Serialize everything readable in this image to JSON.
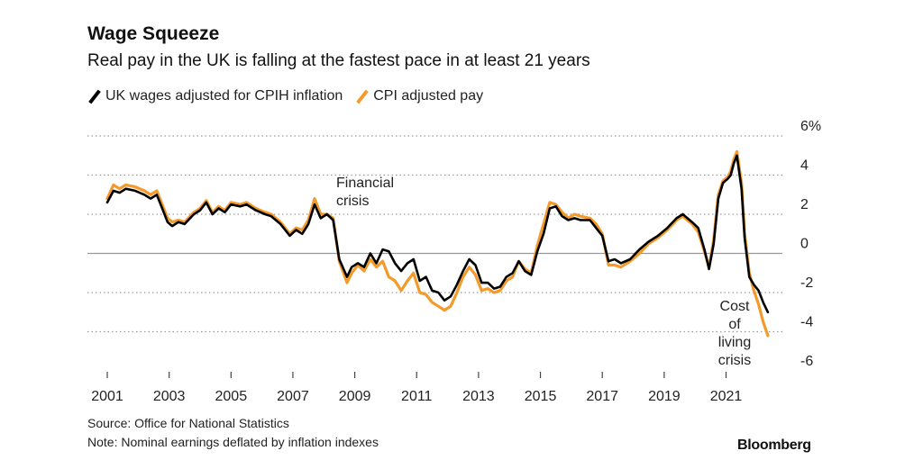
{
  "header": {
    "title": "Wage Squeeze",
    "subtitle": "Real pay in the UK is falling at the fastest pace in at least 21 years"
  },
  "footer": {
    "source": "Source: Office for National Statistics",
    "note": "Note: Nominal earnings deflated by inflation indexes",
    "brand": "Bloomberg"
  },
  "colors": {
    "cpih": "#000000",
    "cpi": "#f39a2b",
    "grid": "#9a9a9a",
    "zero": "#9a9a9a"
  },
  "chart_data": {
    "type": "line",
    "title": "Wage Squeeze",
    "subtitle": "Real pay in the UK is falling at the fastest pace in at least 21 years",
    "xlabel": "",
    "ylabel": "",
    "xlim": [
      2001,
      2022.5
    ],
    "ylim": [
      -6,
      6
    ],
    "yticks": [
      6,
      4,
      2,
      0,
      -2,
      -4,
      -6
    ],
    "ytick_labels": [
      "6%",
      "4",
      "2",
      "0",
      "-2",
      "-4",
      "-6"
    ],
    "xticks": [
      2001,
      2003,
      2005,
      2007,
      2009,
      2011,
      2013,
      2015,
      2017,
      2019,
      2021
    ],
    "xtick_labels": [
      "2001",
      "2003",
      "2005",
      "2007",
      "2009",
      "2011",
      "2013",
      "2015",
      "2017",
      "2019",
      "2021"
    ],
    "grid": "horizontal dotted",
    "legend": "top-left",
    "annotations": [
      {
        "text": [
          "Financial",
          "crisis"
        ],
        "x": 2008.5,
        "y": 3.5
      },
      {
        "text": [
          "Cost",
          "of",
          "living",
          "crisis"
        ],
        "x": 2021.3,
        "y": -3.0
      }
    ],
    "series": [
      {
        "name": "UK wages adjusted for CPIH inflation",
        "color": "#000000",
        "points": [
          [
            2001.0,
            2.6
          ],
          [
            2001.2,
            3.2
          ],
          [
            2001.4,
            3.1
          ],
          [
            2001.6,
            3.3
          ],
          [
            2001.9,
            3.2
          ],
          [
            2002.2,
            3.0
          ],
          [
            2002.4,
            2.8
          ],
          [
            2002.6,
            3.0
          ],
          [
            2002.8,
            2.2
          ],
          [
            2002.95,
            1.6
          ],
          [
            2003.1,
            1.4
          ],
          [
            2003.3,
            1.6
          ],
          [
            2003.5,
            1.5
          ],
          [
            2003.8,
            2.0
          ],
          [
            2004.0,
            2.2
          ],
          [
            2004.2,
            2.6
          ],
          [
            2004.4,
            2.0
          ],
          [
            2004.6,
            2.3
          ],
          [
            2004.8,
            2.1
          ],
          [
            2005.0,
            2.5
          ],
          [
            2005.3,
            2.4
          ],
          [
            2005.5,
            2.5
          ],
          [
            2005.8,
            2.2
          ],
          [
            2006.1,
            2.0
          ],
          [
            2006.3,
            1.9
          ],
          [
            2006.6,
            1.5
          ],
          [
            2006.9,
            0.9
          ],
          [
            2007.1,
            1.2
          ],
          [
            2007.3,
            1.0
          ],
          [
            2007.5,
            1.5
          ],
          [
            2007.7,
            2.5
          ],
          [
            2007.9,
            1.8
          ],
          [
            2008.1,
            2.0
          ],
          [
            2008.3,
            1.7
          ],
          [
            2008.5,
            -0.3
          ],
          [
            2008.75,
            -1.2
          ],
          [
            2008.9,
            -0.7
          ],
          [
            2009.1,
            -0.5
          ],
          [
            2009.3,
            -0.7
          ],
          [
            2009.5,
            0.0
          ],
          [
            2009.7,
            -0.5
          ],
          [
            2009.9,
            0.2
          ],
          [
            2010.1,
            0.1
          ],
          [
            2010.3,
            -0.5
          ],
          [
            2010.5,
            -0.9
          ],
          [
            2010.7,
            -0.5
          ],
          [
            2010.9,
            -0.3
          ],
          [
            2011.1,
            -1.4
          ],
          [
            2011.3,
            -1.2
          ],
          [
            2011.5,
            -1.9
          ],
          [
            2011.7,
            -2.0
          ],
          [
            2011.9,
            -2.4
          ],
          [
            2012.1,
            -2.2
          ],
          [
            2012.3,
            -1.6
          ],
          [
            2012.5,
            -0.9
          ],
          [
            2012.7,
            -0.3
          ],
          [
            2012.9,
            -0.6
          ],
          [
            2013.1,
            -1.5
          ],
          [
            2013.3,
            -1.5
          ],
          [
            2013.5,
            -1.8
          ],
          [
            2013.7,
            -1.7
          ],
          [
            2013.9,
            -1.2
          ],
          [
            2014.1,
            -1.0
          ],
          [
            2014.3,
            -0.4
          ],
          [
            2014.5,
            -0.9
          ],
          [
            2014.7,
            -1.1
          ],
          [
            2014.9,
            0.1
          ],
          [
            2015.1,
            1.0
          ],
          [
            2015.3,
            2.3
          ],
          [
            2015.5,
            2.4
          ],
          [
            2015.7,
            1.9
          ],
          [
            2015.9,
            1.7
          ],
          [
            2016.1,
            1.8
          ],
          [
            2016.3,
            1.7
          ],
          [
            2016.6,
            1.7
          ],
          [
            2016.8,
            1.3
          ],
          [
            2017.0,
            0.9
          ],
          [
            2017.2,
            -0.4
          ],
          [
            2017.4,
            -0.3
          ],
          [
            2017.6,
            -0.5
          ],
          [
            2017.9,
            -0.3
          ],
          [
            2018.2,
            0.2
          ],
          [
            2018.5,
            0.6
          ],
          [
            2018.8,
            0.9
          ],
          [
            2019.1,
            1.3
          ],
          [
            2019.4,
            1.8
          ],
          [
            2019.6,
            2.0
          ],
          [
            2019.9,
            1.6
          ],
          [
            2020.1,
            1.3
          ],
          [
            2020.3,
            0.2
          ],
          [
            2020.45,
            -0.8
          ],
          [
            2020.6,
            0.5
          ],
          [
            2020.75,
            2.8
          ],
          [
            2020.9,
            3.6
          ],
          [
            2021.05,
            3.8
          ],
          [
            2021.15,
            4.0
          ],
          [
            2021.25,
            4.6
          ],
          [
            2021.35,
            5.0
          ],
          [
            2021.5,
            3.3
          ],
          [
            2021.6,
            0.8
          ],
          [
            2021.75,
            -1.2
          ],
          [
            2021.9,
            -1.6
          ],
          [
            2022.05,
            -1.9
          ],
          [
            2022.2,
            -2.5
          ],
          [
            2022.35,
            -3.0
          ]
        ]
      },
      {
        "name": "CPI adjusted pay",
        "color": "#f39a2b",
        "points": [
          [
            2001.0,
            2.8
          ],
          [
            2001.2,
            3.5
          ],
          [
            2001.4,
            3.3
          ],
          [
            2001.6,
            3.5
          ],
          [
            2001.9,
            3.4
          ],
          [
            2002.2,
            3.2
          ],
          [
            2002.4,
            3.0
          ],
          [
            2002.6,
            3.2
          ],
          [
            2002.8,
            2.4
          ],
          [
            2002.95,
            1.8
          ],
          [
            2003.1,
            1.6
          ],
          [
            2003.3,
            1.7
          ],
          [
            2003.5,
            1.6
          ],
          [
            2003.8,
            2.1
          ],
          [
            2004.0,
            2.3
          ],
          [
            2004.2,
            2.7
          ],
          [
            2004.4,
            2.1
          ],
          [
            2004.6,
            2.4
          ],
          [
            2004.8,
            2.2
          ],
          [
            2005.0,
            2.6
          ],
          [
            2005.3,
            2.5
          ],
          [
            2005.5,
            2.6
          ],
          [
            2005.8,
            2.3
          ],
          [
            2006.1,
            2.1
          ],
          [
            2006.3,
            2.0
          ],
          [
            2006.6,
            1.6
          ],
          [
            2006.9,
            1.0
          ],
          [
            2007.1,
            1.3
          ],
          [
            2007.3,
            1.2
          ],
          [
            2007.5,
            1.7
          ],
          [
            2007.7,
            2.8
          ],
          [
            2007.9,
            2.0
          ],
          [
            2008.1,
            2.0
          ],
          [
            2008.3,
            1.8
          ],
          [
            2008.5,
            -0.4
          ],
          [
            2008.75,
            -1.5
          ],
          [
            2008.9,
            -1.0
          ],
          [
            2009.1,
            -0.6
          ],
          [
            2009.3,
            -0.9
          ],
          [
            2009.5,
            -0.3
          ],
          [
            2009.7,
            -0.7
          ],
          [
            2009.9,
            -0.4
          ],
          [
            2010.1,
            -1.2
          ],
          [
            2010.3,
            -1.4
          ],
          [
            2010.5,
            -1.9
          ],
          [
            2010.7,
            -1.4
          ],
          [
            2010.9,
            -1.0
          ],
          [
            2011.1,
            -2.0
          ],
          [
            2011.3,
            -2.1
          ],
          [
            2011.5,
            -2.5
          ],
          [
            2011.7,
            -2.7
          ],
          [
            2011.9,
            -2.9
          ],
          [
            2012.1,
            -2.7
          ],
          [
            2012.3,
            -2.0
          ],
          [
            2012.5,
            -1.2
          ],
          [
            2012.7,
            -0.7
          ],
          [
            2012.9,
            -1.1
          ],
          [
            2013.1,
            -1.9
          ],
          [
            2013.3,
            -1.8
          ],
          [
            2013.5,
            -2.0
          ],
          [
            2013.7,
            -1.9
          ],
          [
            2013.9,
            -1.4
          ],
          [
            2014.1,
            -1.2
          ],
          [
            2014.3,
            -0.4
          ],
          [
            2014.5,
            -0.8
          ],
          [
            2014.7,
            -1.0
          ],
          [
            2014.9,
            0.4
          ],
          [
            2015.1,
            1.5
          ],
          [
            2015.3,
            2.6
          ],
          [
            2015.5,
            2.5
          ],
          [
            2015.7,
            2.1
          ],
          [
            2015.9,
            1.8
          ],
          [
            2016.1,
            2.0
          ],
          [
            2016.3,
            1.9
          ],
          [
            2016.6,
            1.8
          ],
          [
            2016.8,
            1.5
          ],
          [
            2017.0,
            1.0
          ],
          [
            2017.2,
            -0.6
          ],
          [
            2017.4,
            -0.6
          ],
          [
            2017.6,
            -0.7
          ],
          [
            2017.9,
            -0.4
          ],
          [
            2018.2,
            0.0
          ],
          [
            2018.5,
            0.5
          ],
          [
            2018.8,
            0.8
          ],
          [
            2019.1,
            1.2
          ],
          [
            2019.4,
            1.7
          ],
          [
            2019.6,
            1.9
          ],
          [
            2019.9,
            1.5
          ],
          [
            2020.1,
            1.1
          ],
          [
            2020.3,
            0.1
          ],
          [
            2020.45,
            -0.7
          ],
          [
            2020.6,
            0.7
          ],
          [
            2020.75,
            3.0
          ],
          [
            2020.9,
            3.7
          ],
          [
            2021.05,
            3.9
          ],
          [
            2021.15,
            4.2
          ],
          [
            2021.25,
            4.8
          ],
          [
            2021.35,
            5.2
          ],
          [
            2021.5,
            3.6
          ],
          [
            2021.6,
            1.0
          ],
          [
            2021.75,
            -1.0
          ],
          [
            2021.9,
            -1.9
          ],
          [
            2022.05,
            -2.6
          ],
          [
            2022.2,
            -3.5
          ],
          [
            2022.35,
            -4.2
          ]
        ]
      }
    ]
  }
}
